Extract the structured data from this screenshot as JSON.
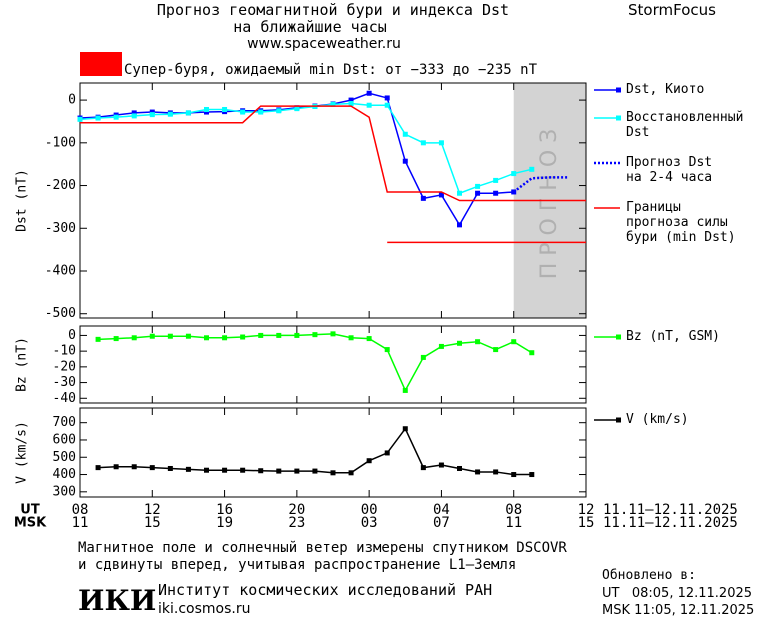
{
  "header": {
    "title": "Прогноз геомагнитной бури и индекса Dst",
    "subtitle": "на ближайшие часы",
    "url": "www.spaceweather.ru",
    "brand": "StormFocus"
  },
  "storm_level": {
    "color": "#ff0000",
    "text": "Супер-буря, ожидаемый min Dst: от −333 до −235 nT"
  },
  "chart_data": [
    {
      "type": "line",
      "ylabel": "Dst (nT)",
      "xlim": [
        0,
        28
      ],
      "ylim": [
        -510,
        40
      ],
      "yticks": [
        0,
        -100,
        -200,
        -300,
        -400,
        -500
      ],
      "shade": {
        "xlim": [
          24,
          28
        ],
        "label": "ПРОГНОЗ",
        "color": "#d3d3d3"
      },
      "series": [
        {
          "name": "Dst, Киото",
          "color": "#0000ff",
          "marker": "square",
          "x": [
            0,
            1,
            2,
            3,
            4,
            5,
            6,
            7,
            8,
            9,
            10,
            11,
            12,
            13,
            14,
            15,
            16,
            17,
            18,
            19,
            20,
            21,
            22,
            23,
            24
          ],
          "values": [
            -42,
            -40,
            -35,
            -30,
            -28,
            -30,
            -30,
            -28,
            -27,
            -25,
            -25,
            -23,
            -18,
            -14,
            -9,
            0,
            16,
            5,
            -143,
            -230,
            -222,
            -292,
            -218,
            -218,
            -215
          ]
        },
        {
          "name": "Восстановленный\nDst",
          "color": "#00ffff",
          "marker": "square",
          "x": [
            0,
            1,
            2,
            3,
            4,
            5,
            6,
            7,
            8,
            9,
            10,
            11,
            12,
            13,
            14,
            15,
            16,
            17,
            18,
            19,
            20,
            21,
            22,
            23,
            24,
            25
          ],
          "values": [
            -45,
            -42,
            -40,
            -37,
            -34,
            -33,
            -30,
            -22,
            -22,
            -28,
            -28,
            -25,
            -20,
            -15,
            -10,
            -8,
            -12,
            -12,
            -80,
            -100,
            -100,
            -218,
            -202,
            -188,
            -172,
            -162
          ]
        },
        {
          "name": "Прогноз Dst\nна 2-4 часа",
          "color": "#0000ff",
          "dash": "dotted",
          "x": [
            24,
            25,
            26,
            27
          ],
          "values": [
            -215,
            -183,
            -181,
            -181
          ]
        },
        {
          "name": "Границы\nпрогноза силы\nбури (min Dst)",
          "color": "#ff0000",
          "x": [
            0,
            9,
            10,
            15,
            16,
            17,
            20,
            21,
            28
          ],
          "values": [
            -53,
            -53,
            -14,
            -14,
            -40,
            -215,
            -215,
            -235,
            -235
          ]
        },
        {
          "color": "#ff0000",
          "x": [
            17,
            28
          ],
          "values": [
            -333,
            -333
          ]
        }
      ]
    },
    {
      "type": "line",
      "ylabel": "Bz (nT)",
      "xlim": [
        0,
        28
      ],
      "ylim": [
        -43,
        6
      ],
      "yticks": [
        0,
        -10,
        -20,
        -30,
        -40
      ],
      "series": [
        {
          "name": "Bz (nT, GSM)",
          "color": "#00ff00",
          "marker": "square",
          "x": [
            1,
            2,
            3,
            4,
            5,
            6,
            7,
            8,
            9,
            10,
            11,
            12,
            13,
            14,
            15,
            16,
            17,
            18,
            19,
            20,
            21,
            22,
            23,
            24,
            25
          ],
          "values": [
            -2.5,
            -2,
            -1.5,
            -0.5,
            -0.5,
            -0.5,
            -1.5,
            -1.5,
            -1,
            0,
            0,
            0,
            0.5,
            1,
            -1.5,
            -2,
            -9,
            -35,
            -14,
            -7,
            -5,
            -4,
            -9,
            -4,
            -11
          ]
        }
      ]
    },
    {
      "type": "line",
      "ylabel": "V (km/s)",
      "xlim": [
        0,
        28
      ],
      "ylim": [
        270,
        785
      ],
      "yticks": [
        700,
        600,
        500,
        400,
        300
      ],
      "xlabel": "UT",
      "date_range": "11.11–12.11.2025",
      "xticks": [
        {
          "value": 0,
          "label": "08"
        },
        {
          "value": 4,
          "label": "12"
        },
        {
          "value": 8,
          "label": "16"
        },
        {
          "value": 12,
          "label": "20"
        },
        {
          "value": 16,
          "label": "00"
        },
        {
          "value": 20,
          "label": "04"
        },
        {
          "value": 24,
          "label": "08"
        },
        {
          "value": 28,
          "label": "12"
        }
      ],
      "x2label": "MSK",
      "x2_date_range": "11.11–12.11.2025",
      "x2ticks": [
        {
          "value": 0,
          "label": "11"
        },
        {
          "value": 4,
          "label": "15"
        },
        {
          "value": 8,
          "label": "19"
        },
        {
          "value": 12,
          "label": "23"
        },
        {
          "value": 16,
          "label": "03"
        },
        {
          "value": 20,
          "label": "07"
        },
        {
          "value": 24,
          "label": "11"
        },
        {
          "value": 28,
          "label": "15"
        }
      ],
      "series": [
        {
          "name": "V (km/s)",
          "color": "#000000",
          "marker": "square",
          "x": [
            1,
            2,
            3,
            4,
            5,
            6,
            7,
            8,
            9,
            10,
            11,
            12,
            13,
            14,
            15,
            16,
            17,
            18,
            19,
            20,
            21,
            22,
            23,
            24,
            25
          ],
          "values": [
            440,
            445,
            445,
            440,
            435,
            430,
            425,
            425,
            425,
            422,
            420,
            420,
            420,
            410,
            410,
            480,
            525,
            665,
            440,
            455,
            435,
            415,
            415,
            400,
            400
          ]
        }
      ]
    }
  ],
  "footer": {
    "note_line1": "Магнитное поле и солнечный ветер измерены спутником DSCOVR",
    "note_line2": "и сдвинуты вперед, учитывая распространение L1–Земля",
    "logo": "ИКИ",
    "institute": "Институт космических исследований РАН",
    "institute_url": "iki.cosmos.ru",
    "updated_label": "Обновлено в:",
    "updated_ut": "UT   08:05, 12.11.2025",
    "updated_msk": "MSK 11:05, 12.11.2025"
  }
}
